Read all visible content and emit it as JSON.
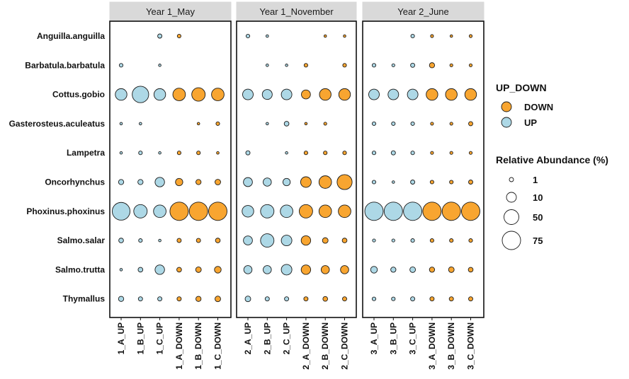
{
  "chart_data": {
    "type": "bubble",
    "facets": [
      "Year 1_May",
      "Year 1_November",
      "Year 2_June"
    ],
    "species": [
      "Anguilla.anguilla",
      "Barbatula.barbatula",
      "Cottus.gobio",
      "Gasterosteus.aculeatus",
      "Lampetra",
      "Oncorhynchus",
      "Phoxinus.phoxinus",
      "Salmo.salar",
      "Salmo.trutta",
      "Thymallus"
    ],
    "samples": [
      [
        "1_A_UP",
        "1_B_UP",
        "1_C_UP",
        "1_A_DOWN",
        "1_B_DOWN",
        "1_C_DOWN"
      ],
      [
        "2_A_UP",
        "2_B_UP",
        "2_C_UP",
        "2_A_DOWN",
        "2_B_DOWN",
        "2_C_DOWN"
      ],
      [
        "3_A_UP",
        "3_B_UP",
        "3_C_UP",
        "3_A_DOWN",
        "3_B_DOWN",
        "3_C_DOWN"
      ]
    ],
    "direction": [
      "UP",
      "UP",
      "UP",
      "DOWN",
      "DOWN",
      "DOWN"
    ],
    "values": [
      [
        [
          0,
          0,
          4,
          3,
          0,
          0
        ],
        [
          3,
          0,
          1,
          0,
          0,
          0
        ],
        [
          30,
          60,
          30,
          35,
          40,
          35
        ],
        [
          1,
          1.5,
          0,
          0,
          1,
          3
        ],
        [
          1,
          3,
          1,
          3,
          3,
          1.5
        ],
        [
          6,
          6,
          20,
          12,
          6,
          7
        ],
        [
          70,
          40,
          35,
          75,
          75,
          75
        ],
        [
          5,
          3,
          1,
          4,
          4,
          5
        ],
        [
          1,
          5,
          20,
          5,
          7,
          10
        ],
        [
          6,
          4,
          4,
          4,
          6,
          7
        ]
      ],
      [
        [
          3,
          1.5,
          0,
          0,
          1,
          1
        ],
        [
          0,
          1.5,
          1,
          3,
          0,
          3
        ],
        [
          25,
          22,
          25,
          18,
          30,
          30
        ],
        [
          0,
          1,
          5,
          1,
          2,
          0
        ],
        [
          4,
          0,
          1,
          3,
          3,
          3
        ],
        [
          18,
          15,
          12,
          25,
          35,
          50
        ],
        [
          30,
          40,
          35,
          40,
          35,
          35
        ],
        [
          18,
          40,
          25,
          20,
          7,
          5
        ],
        [
          15,
          15,
          25,
          20,
          15,
          15
        ],
        [
          7,
          4,
          4,
          4,
          5,
          4
        ]
      ],
      [
        [
          0,
          0,
          3,
          2,
          1,
          2
        ],
        [
          3,
          2,
          4,
          6,
          2,
          2
        ],
        [
          25,
          25,
          25,
          30,
          30,
          30
        ],
        [
          3,
          3,
          3,
          2,
          2,
          4
        ],
        [
          3,
          4,
          3,
          2,
          2,
          2
        ],
        [
          3,
          1,
          4,
          3,
          3,
          4
        ],
        [
          75,
          75,
          75,
          75,
          75,
          75
        ],
        [
          2,
          2,
          3,
          3,
          3,
          3
        ],
        [
          10,
          6,
          7,
          6,
          7,
          5
        ],
        [
          3,
          3,
          4,
          4,
          4,
          4
        ]
      ]
    ],
    "colors": {
      "UP": "#add8e6",
      "DOWN": "#f8a530"
    },
    "legend_color": {
      "title": "UP_DOWN",
      "entries": [
        "DOWN",
        "UP"
      ]
    },
    "legend_size": {
      "title": "Relative Abundance (%)",
      "entries": [
        1,
        10,
        50,
        75
      ]
    },
    "xlabel": "",
    "ylabel": "",
    "legend_position": "right"
  }
}
